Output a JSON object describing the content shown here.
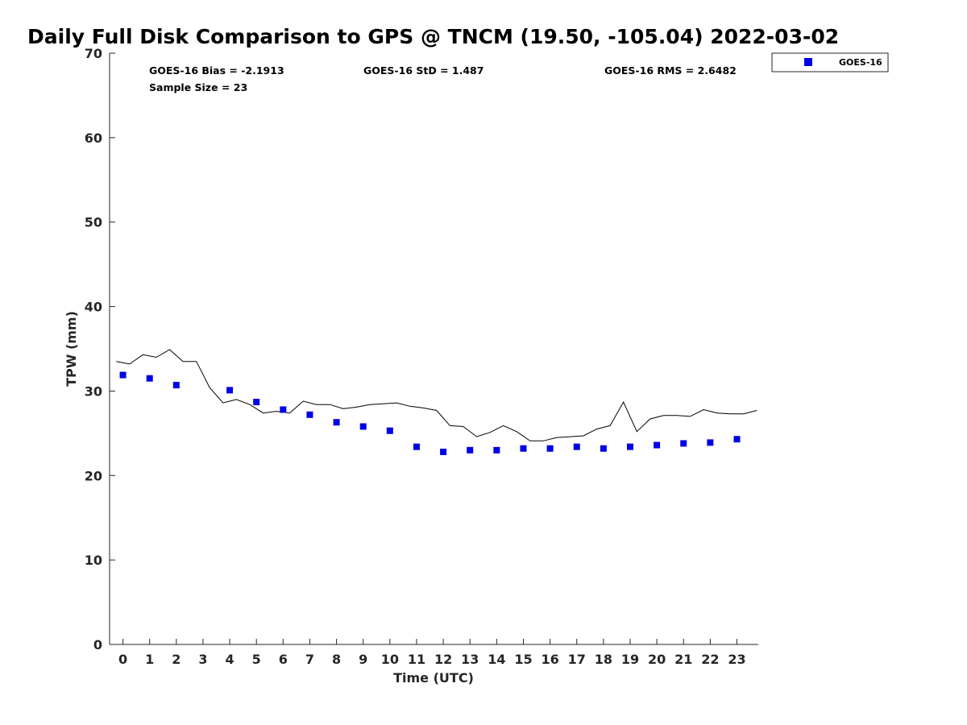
{
  "chart_data": {
    "type": "scatter",
    "title": "Daily Full Disk Comparison to GPS @ TNCM (19.50, -105.04) 2022-03-02",
    "xlabel": "Time (UTC)",
    "ylabel": "TPW (mm)",
    "xlim": [
      -0.5,
      23.8
    ],
    "ylim": [
      0,
      70
    ],
    "x_ticks": [
      "0",
      "1",
      "2",
      "3",
      "4",
      "5",
      "6",
      "7",
      "8",
      "9",
      "10",
      "11",
      "12",
      "13",
      "14",
      "15",
      "16",
      "17",
      "18",
      "19",
      "20",
      "21",
      "22",
      "23"
    ],
    "y_ticks": [
      "0",
      "10",
      "20",
      "30",
      "40",
      "50",
      "60",
      "70"
    ],
    "grid": false,
    "legend_position": "top-right, outside plot",
    "stats": {
      "bias": "GOES-16 Bias = -2.1913",
      "std": "GOES-16 StD = 1.487",
      "rms": "GOES-16 RMS = 2.6482",
      "sample": "Sample Size = 23"
    },
    "series": [
      {
        "name": "GOES-16",
        "kind": "scatter",
        "marker": "square",
        "color": "#0000e6",
        "x": [
          0,
          1,
          2,
          4,
          5,
          6,
          7,
          8,
          9,
          10,
          11,
          12,
          13,
          14,
          15,
          16,
          17,
          18,
          19,
          20,
          21,
          22,
          23
        ],
        "y": [
          31.9,
          31.5,
          30.7,
          30.1,
          28.7,
          27.8,
          27.2,
          26.3,
          25.8,
          25.3,
          23.4,
          22.8,
          23.0,
          23.0,
          23.2,
          23.2,
          23.4,
          23.2,
          23.4,
          23.6,
          23.8,
          23.9,
          24.3
        ]
      },
      {
        "kind": "line",
        "color": "#000000",
        "x": [
          -0.25,
          0.25,
          0.75,
          1.25,
          1.75,
          2.25,
          2.75,
          3.25,
          3.75,
          4.25,
          4.75,
          5.25,
          5.75,
          6.25,
          6.75,
          7.25,
          7.75,
          8.25,
          8.75,
          9.25,
          9.75,
          10.25,
          10.75,
          11.25,
          11.75,
          12.25,
          12.75,
          13.25,
          13.75,
          14.25,
          14.75,
          15.25,
          15.75,
          16.25,
          16.75,
          17.25,
          17.75,
          18.25,
          18.75,
          19.25,
          19.75,
          20.25,
          20.75,
          21.25,
          21.75,
          22.25,
          22.75,
          23.25,
          23.75
        ],
        "y": [
          33.5,
          33.2,
          34.3,
          34.0,
          34.9,
          33.5,
          33.5,
          30.4,
          28.6,
          29.0,
          28.4,
          27.4,
          27.6,
          27.4,
          28.8,
          28.4,
          28.4,
          27.9,
          28.1,
          28.4,
          28.5,
          28.6,
          28.2,
          28.0,
          27.7,
          25.9,
          25.8,
          24.6,
          25.1,
          25.9,
          25.2,
          24.1,
          24.1,
          24.5,
          24.6,
          24.7,
          25.5,
          25.9,
          28.7,
          25.2,
          26.7,
          27.1,
          27.1,
          27.0,
          27.8,
          27.4,
          27.3,
          27.3,
          27.7
        ]
      }
    ]
  }
}
